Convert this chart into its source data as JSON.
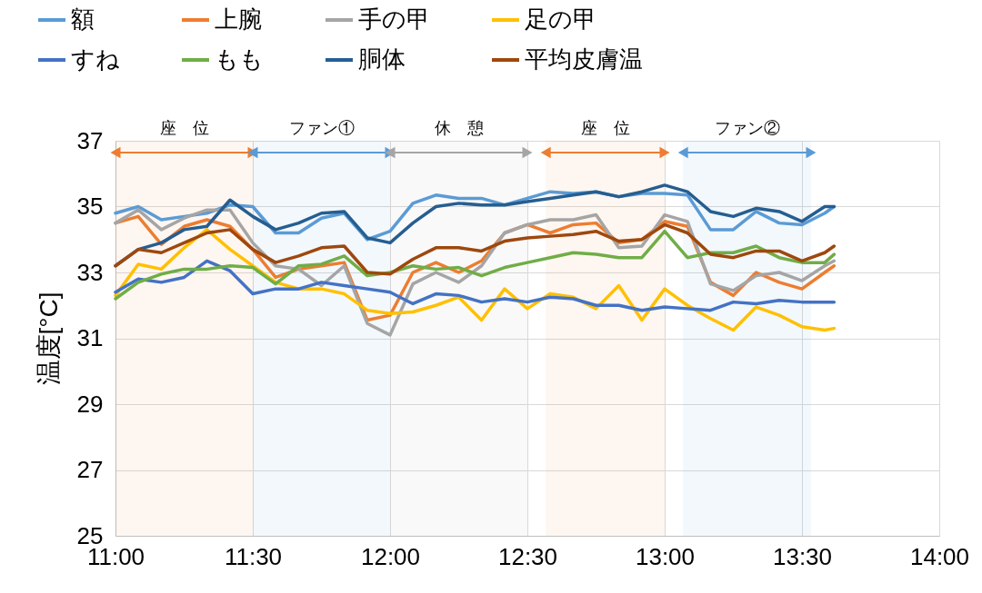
{
  "chart_data": {
    "type": "line",
    "ylabel": "温度[°C]",
    "x": [
      11,
      11.083,
      11.167,
      11.25,
      11.333,
      11.417,
      11.5,
      11.583,
      11.667,
      11.75,
      11.833,
      11.917,
      12,
      12.083,
      12.167,
      12.25,
      12.333,
      12.417,
      12.5,
      12.583,
      12.667,
      12.75,
      12.833,
      12.917,
      13,
      13.083,
      13.167,
      13.25,
      13.333,
      13.417,
      13.5,
      13.583,
      13.617
    ],
    "series": [
      {
        "name": "額",
        "color": "#5b9bd5",
        "values": [
          34.8,
          35.0,
          34.6,
          34.7,
          34.8,
          35.05,
          35.0,
          34.2,
          34.2,
          34.65,
          34.8,
          34.0,
          34.25,
          35.1,
          35.35,
          35.25,
          35.25,
          35.05,
          35.25,
          35.45,
          35.4,
          35.45,
          35.3,
          35.4,
          35.4,
          35.35,
          34.3,
          34.3,
          34.85,
          34.5,
          34.45,
          34.8,
          35.0
        ]
      },
      {
        "name": "上腕",
        "color": "#ed7d31",
        "values": [
          34.5,
          34.7,
          33.85,
          34.4,
          34.6,
          34.4,
          33.7,
          32.85,
          33.1,
          33.2,
          33.3,
          31.55,
          31.7,
          33.0,
          33.3,
          33.0,
          33.35,
          34.2,
          34.45,
          34.2,
          34.45,
          34.5,
          33.9,
          34.0,
          34.55,
          34.4,
          32.7,
          32.3,
          33.0,
          32.7,
          32.5,
          33.0,
          33.2
        ]
      },
      {
        "name": "手の甲",
        "color": "#a5a5a5",
        "values": [
          34.5,
          34.9,
          34.3,
          34.65,
          34.9,
          34.9,
          33.9,
          33.2,
          33.1,
          32.6,
          33.2,
          31.45,
          31.1,
          32.65,
          33.0,
          32.7,
          33.2,
          34.2,
          34.45,
          34.6,
          34.6,
          34.75,
          33.75,
          33.8,
          34.75,
          34.55,
          32.65,
          32.45,
          32.9,
          33.0,
          32.75,
          33.2,
          33.35
        ]
      },
      {
        "name": "足の甲",
        "color": "#ffc000",
        "values": [
          32.3,
          33.25,
          33.1,
          33.75,
          34.3,
          33.7,
          33.2,
          32.7,
          32.5,
          32.5,
          32.35,
          31.85,
          31.75,
          31.8,
          32.0,
          32.25,
          31.55,
          32.5,
          31.9,
          32.35,
          32.25,
          31.9,
          32.6,
          31.55,
          32.5,
          32.0,
          31.6,
          31.25,
          31.95,
          31.7,
          31.35,
          31.25,
          31.3
        ]
      },
      {
        "name": "すね",
        "color": "#4472c4",
        "values": [
          32.4,
          32.8,
          32.7,
          32.85,
          33.35,
          33.05,
          32.35,
          32.5,
          32.5,
          32.7,
          32.6,
          32.5,
          32.4,
          32.05,
          32.35,
          32.3,
          32.1,
          32.2,
          32.1,
          32.25,
          32.2,
          32.0,
          32.0,
          31.85,
          31.95,
          31.9,
          31.85,
          32.1,
          32.05,
          32.15,
          32.1,
          32.1,
          32.1
        ]
      },
      {
        "name": "もも",
        "color": "#70ad47",
        "values": [
          32.2,
          32.7,
          32.95,
          33.1,
          33.1,
          33.2,
          33.15,
          32.65,
          33.2,
          33.25,
          33.5,
          32.9,
          33.0,
          33.2,
          33.1,
          33.15,
          32.9,
          33.15,
          33.3,
          33.45,
          33.6,
          33.55,
          33.45,
          33.45,
          34.25,
          33.45,
          33.6,
          33.6,
          33.8,
          33.45,
          33.3,
          33.3,
          33.55
        ]
      },
      {
        "name": "胴体",
        "color": "#255e91",
        "values": [
          33.2,
          33.7,
          33.9,
          34.3,
          34.4,
          35.2,
          34.7,
          34.3,
          34.5,
          34.8,
          34.85,
          34.05,
          33.9,
          34.5,
          35.0,
          35.1,
          35.05,
          35.05,
          35.15,
          35.25,
          35.35,
          35.45,
          35.3,
          35.45,
          35.65,
          35.45,
          34.85,
          34.7,
          34.95,
          34.85,
          34.55,
          35.0,
          35.0
        ]
      },
      {
        "name": "平均皮膚温",
        "color": "#9e480e",
        "values": [
          33.2,
          33.7,
          33.6,
          33.9,
          34.2,
          34.3,
          33.7,
          33.3,
          33.5,
          33.75,
          33.8,
          33.0,
          32.95,
          33.4,
          33.75,
          33.75,
          33.65,
          33.95,
          34.05,
          34.1,
          34.15,
          34.25,
          33.95,
          34.0,
          34.45,
          34.2,
          33.55,
          33.45,
          33.65,
          33.65,
          33.35,
          33.6,
          33.8
        ]
      }
    ],
    "xlim": [
      11,
      14
    ],
    "xticks": [
      {
        "value": 11,
        "label": "11:00"
      },
      {
        "value": 11.5,
        "label": "11:30"
      },
      {
        "value": 12,
        "label": "12:00"
      },
      {
        "value": 12.5,
        "label": "12:30"
      },
      {
        "value": 13,
        "label": "13:00"
      },
      {
        "value": 13.5,
        "label": "13:30"
      },
      {
        "value": 14,
        "label": "14:00"
      }
    ],
    "ylim": [
      25,
      37
    ],
    "yticks": [
      25,
      27,
      29,
      31,
      33,
      35,
      37
    ],
    "bands": [
      {
        "axis": "x",
        "from": 11,
        "to": 11.5,
        "label": "座　位",
        "color": "#ed7d31"
      },
      {
        "axis": "x",
        "from": 11.5,
        "to": 12,
        "label": "ファン①",
        "color": "#5b9bd5"
      },
      {
        "axis": "x",
        "from": 12,
        "to": 12.5,
        "label": "休　憩",
        "color": "#a5a5a5"
      },
      {
        "axis": "x",
        "from": 12.567,
        "to": 13,
        "label": "座　位",
        "color": "#ed7d31"
      },
      {
        "axis": "x",
        "from": 13.067,
        "to": 13.533,
        "label": "ファン②",
        "color": "#5b9bd5"
      }
    ],
    "grid": true,
    "legend": "top",
    "marker": "none",
    "line_style": "solid"
  }
}
